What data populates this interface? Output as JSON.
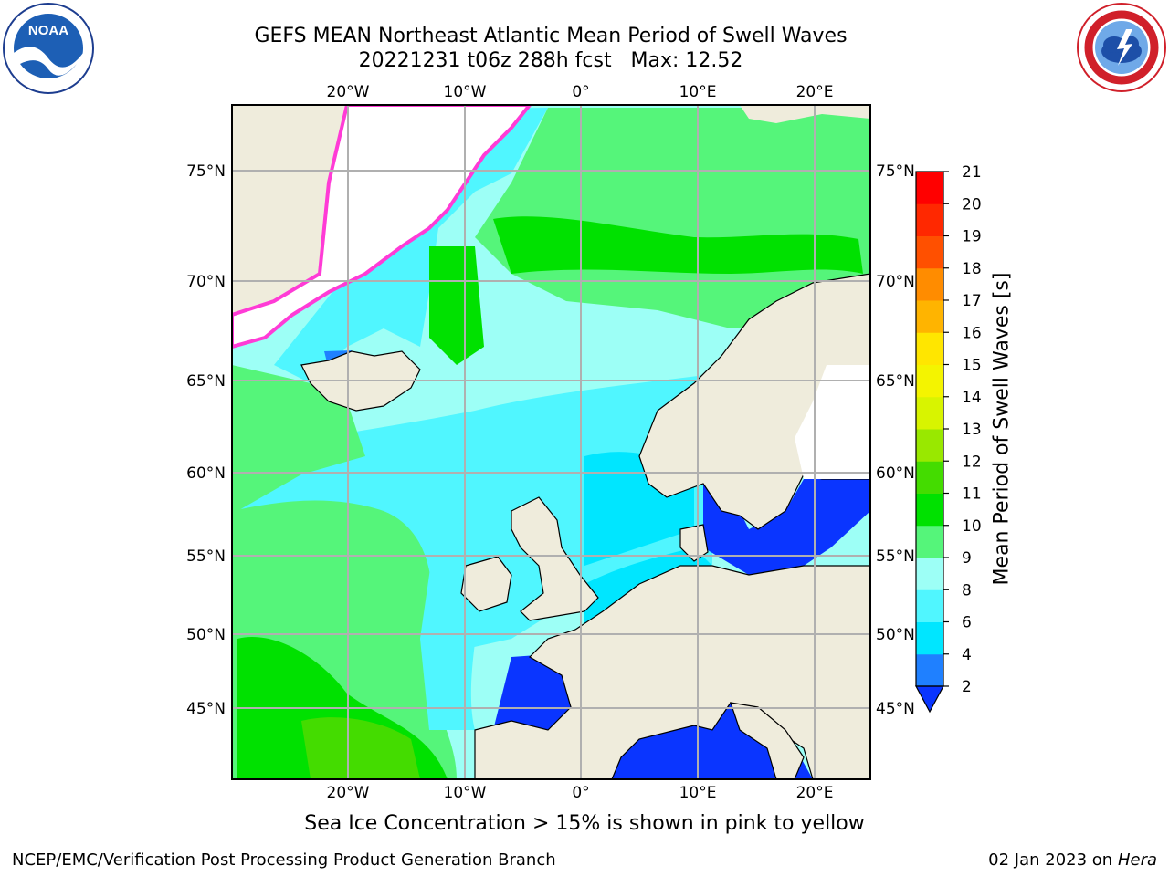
{
  "header": {
    "title": "GEFS MEAN Northeast Atlantic Mean Period of Swell Waves",
    "subtitle": "20221231 t06z 288h fcst   Max: 12.52"
  },
  "logos": {
    "left": {
      "icon": "noaa-logo-icon",
      "text": "NOAA"
    },
    "right": {
      "icon": "national-weather-service-logo-icon"
    }
  },
  "map": {
    "longitude_labels": [
      "20°W",
      "10°W",
      "0°",
      "10°E",
      "20°E"
    ],
    "latitude_labels": [
      "75°N",
      "70°N",
      "65°N",
      "60°N",
      "55°N",
      "50°N",
      "45°N"
    ],
    "colors": {
      "land": "#efecdc",
      "sea_ice": "#ffffff",
      "grid": "#b0b0b0",
      "coast": "#000000"
    }
  },
  "colorbar": {
    "label": "Mean Period of Swell Waves [s]",
    "ticks": [
      "2",
      "4",
      "6",
      "8",
      "9",
      "10",
      "11",
      "12",
      "13",
      "14",
      "15",
      "16",
      "17",
      "18",
      "19",
      "20",
      "21"
    ],
    "colors": [
      "#0a35ff",
      "#1f80ff",
      "#00e6ff",
      "#50f6ff",
      "#9dfff6",
      "#55f57a",
      "#00e100",
      "#44dc00",
      "#99e800",
      "#d8f400",
      "#f4f400",
      "#ffe600",
      "#ffb400",
      "#ff8c00",
      "#ff5000",
      "#ff2800",
      "#ff0000"
    ]
  },
  "footer": {
    "note": "Sea Ice Concentration > 15% is shown in pink to yellow",
    "credit": "NCEP/EMC/Verification Post Processing Product Generation Branch",
    "date_prefix": "02 Jan 2023 on ",
    "system": "Hera"
  }
}
